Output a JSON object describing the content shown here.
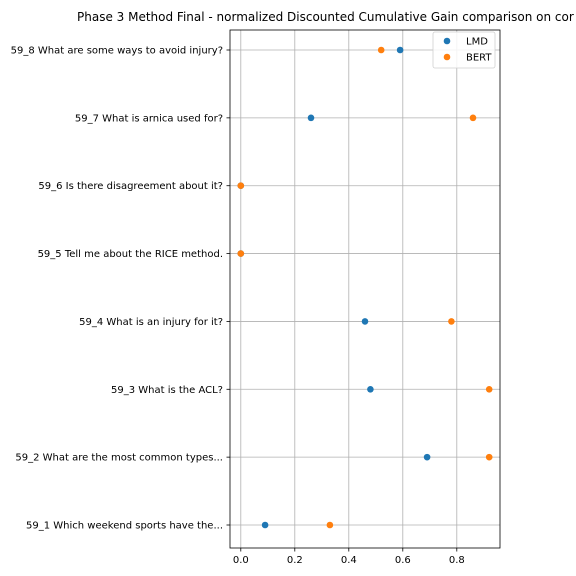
{
  "chart_data": {
    "type": "scatter",
    "title": "Phase 3 Method Final - normalized Discounted Cumulative Gain comparison on cor",
    "xlabel": "",
    "ylabel": "",
    "xlim": [
      -0.04,
      0.96
    ],
    "xticks": [
      0.0,
      0.2,
      0.4,
      0.6,
      0.8
    ],
    "xtick_labels": [
      "0.0",
      "0.2",
      "0.4",
      "0.6",
      "0.8"
    ],
    "grid": true,
    "legend_position": "top-right",
    "categories": [
      "59_1 Which weekend sports have the...",
      "59_2 What are the most common types...",
      "59_3 What is the ACL?",
      "59_4 What is an injury for it?",
      "59_5 Tell me about the RICE method.",
      "59_6 Is there disagreement about it?",
      "59_7 What is arnica used for?",
      "59_8 What are some ways to avoid injury?"
    ],
    "series": [
      {
        "name": "LMD",
        "color": "#1f77b4",
        "values": [
          0.09,
          0.69,
          0.48,
          0.46,
          0.0,
          0.0,
          0.26,
          0.59
        ]
      },
      {
        "name": "BERT",
        "color": "#ff7f0e",
        "values": [
          0.33,
          0.92,
          0.92,
          0.78,
          0.0,
          0.0,
          0.86,
          0.52
        ]
      }
    ]
  }
}
